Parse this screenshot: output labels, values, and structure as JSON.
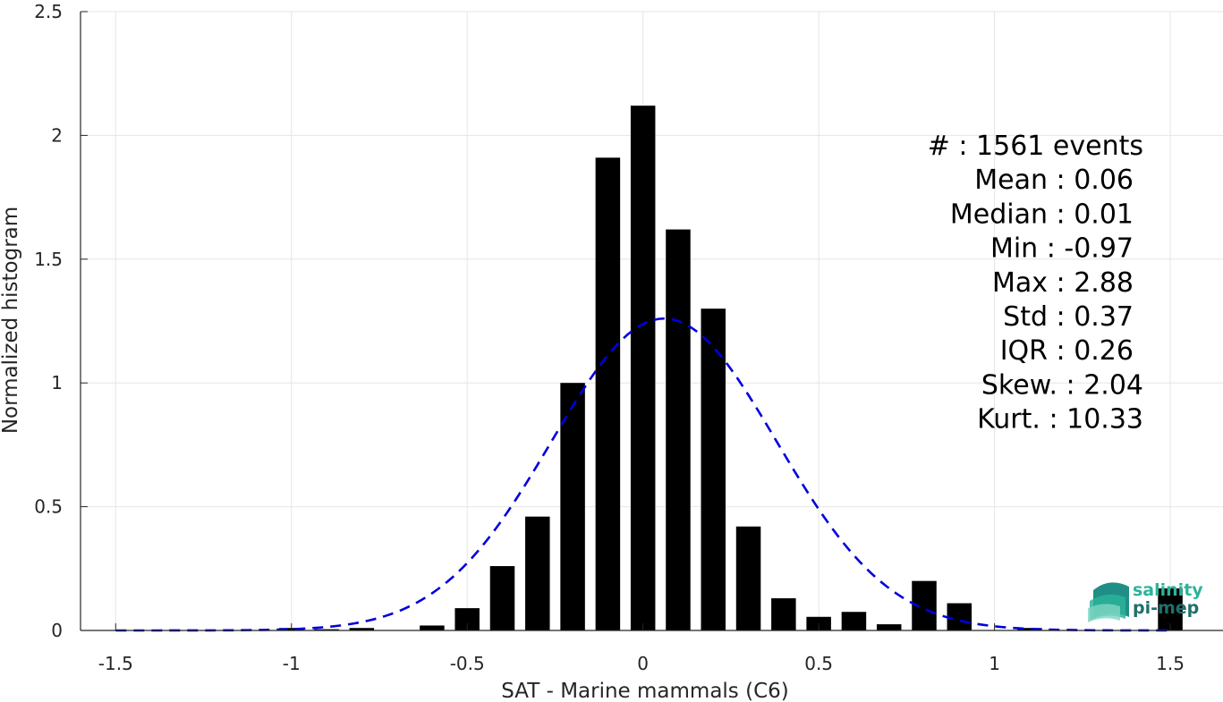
{
  "chart_data": {
    "type": "bar",
    "xlabel": "SAT - Marine mammals (C6)",
    "ylabel": "Normalized histogram",
    "xlim": [
      -1.6,
      1.65
    ],
    "ylim": [
      0,
      2.5
    ],
    "grid": true,
    "x_ticks": [
      "-1.5",
      "-1",
      "-0.5",
      "0",
      "0.5",
      "1",
      "1.5"
    ],
    "y_ticks": [
      "0",
      "0.5",
      "1",
      "1.5",
      "2",
      "2.5"
    ],
    "x_tick_values": [
      -1.5,
      -1,
      -0.5,
      0,
      0.5,
      1,
      1.5
    ],
    "y_tick_values": [
      0,
      0.5,
      1,
      1.5,
      2,
      2.5
    ],
    "bar_width": 0.07,
    "bars": [
      {
        "x": -1.0,
        "y": 0.01
      },
      {
        "x": -0.9,
        "y": 0.005
      },
      {
        "x": -0.8,
        "y": 0.01
      },
      {
        "x": -0.6,
        "y": 0.02
      },
      {
        "x": -0.5,
        "y": 0.09
      },
      {
        "x": -0.4,
        "y": 0.26
      },
      {
        "x": -0.3,
        "y": 0.46
      },
      {
        "x": -0.2,
        "y": 1.0
      },
      {
        "x": -0.1,
        "y": 1.91
      },
      {
        "x": 0.0,
        "y": 2.12
      },
      {
        "x": 0.1,
        "y": 1.62
      },
      {
        "x": 0.2,
        "y": 1.3
      },
      {
        "x": 0.3,
        "y": 0.42
      },
      {
        "x": 0.4,
        "y": 0.13
      },
      {
        "x": 0.5,
        "y": 0.055
      },
      {
        "x": 0.6,
        "y": 0.075
      },
      {
        "x": 0.7,
        "y": 0.025
      },
      {
        "x": 0.8,
        "y": 0.2
      },
      {
        "x": 0.9,
        "y": 0.11
      },
      {
        "x": 1.1,
        "y": 0.01
      },
      {
        "x": 1.5,
        "y": 0.17
      }
    ],
    "gaussian_fit": {
      "mean": 0.06,
      "std": 0.32,
      "peak": 1.26,
      "x_range": [
        -1.5,
        1.5
      ],
      "style": "dashed",
      "color": "#0000dd"
    }
  },
  "stats": [
    {
      "text": "#  : 1561 events",
      "anchor": "end"
    },
    {
      "text": "Mean : 0.06",
      "anchor": "end"
    },
    {
      "text": "Median : 0.01",
      "anchor": "end"
    },
    {
      "text": "Min : -0.97",
      "anchor": "end"
    },
    {
      "text": "Max : 2.88",
      "anchor": "end"
    },
    {
      "text": "Std : 0.37",
      "anchor": "end"
    },
    {
      "text": "IQR : 0.26",
      "anchor": "end"
    },
    {
      "text": "Skew. : 2.04",
      "anchor": "end"
    },
    {
      "text": "Kurt. : 10.33",
      "anchor": "end"
    }
  ],
  "logo": {
    "line1": "salinity",
    "line2": "pi-mep"
  },
  "colors": {
    "bar": "#000000",
    "fit": "#0000dd",
    "grid": "#e6e6e6",
    "axis": "#262626",
    "logo_teal": "#2bb39a",
    "logo_dark": "#1f6f6a"
  }
}
